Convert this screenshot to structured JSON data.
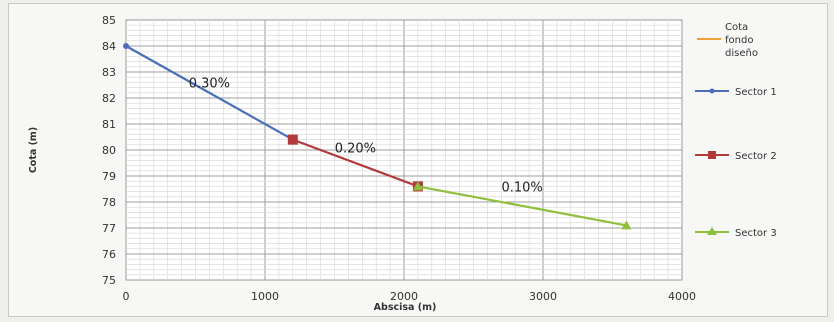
{
  "chart_data": {
    "type": "line",
    "xlabel": "Abscisa (m)",
    "ylabel": "Cota (m)",
    "xlim": [
      0,
      4000
    ],
    "ylim": [
      75,
      85
    ],
    "x_ticks": [
      0,
      1000,
      2000,
      3000,
      4000
    ],
    "y_ticks": [
      75,
      76,
      77,
      78,
      79,
      80,
      81,
      82,
      83,
      84,
      85
    ],
    "grid": true,
    "legend_position": "right",
    "series": [
      {
        "name": "Cota fondo diseño",
        "color": "#f0a23a",
        "marker": "none",
        "x": [],
        "y": []
      },
      {
        "name": "Sector 1",
        "color": "#4a6fb8",
        "marker": "circle",
        "x": [
          0,
          1200
        ],
        "y": [
          84.0,
          80.4
        ]
      },
      {
        "name": "Sector 2",
        "color": "#b33a3a",
        "marker": "square",
        "x": [
          1200,
          2100
        ],
        "y": [
          80.4,
          78.6
        ]
      },
      {
        "name": "Sector 3",
        "color": "#8fbf3a",
        "marker": "triangle",
        "x": [
          2100,
          3600
        ],
        "y": [
          78.6,
          77.1
        ]
      }
    ],
    "annotations": [
      {
        "text": "0.30%",
        "x": 600,
        "y": 82.4
      },
      {
        "text": "0.20%",
        "x": 1650,
        "y": 79.9
      },
      {
        "text": "0.10%",
        "x": 2850,
        "y": 78.4
      }
    ]
  },
  "legend_lines": {
    "cota": [
      "Cota",
      "fondo",
      "diseño"
    ]
  }
}
